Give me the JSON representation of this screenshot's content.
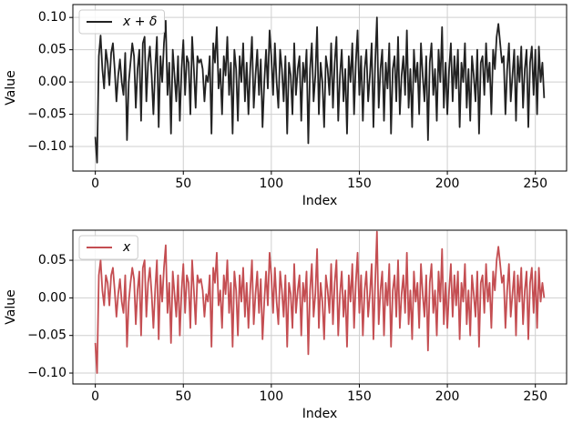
{
  "chart_data": [
    {
      "type": "line",
      "xlabel": "Index",
      "ylabel": "Value",
      "grid": true,
      "legend": "upper left",
      "xlim": [
        -12.75,
        267.75
      ],
      "xticks": [
        0,
        50,
        100,
        150,
        200,
        250
      ],
      "ylim": [
        -0.138,
        0.12
      ],
      "yticks": [
        {
          "value": -0.1,
          "label": "−0.10"
        },
        {
          "value": -0.05,
          "label": "−0.05"
        },
        {
          "value": 0,
          "label": "0.00"
        },
        {
          "value": 0.05,
          "label": "0.05"
        },
        {
          "value": 0.1,
          "label": "0.10"
        }
      ],
      "x": [
        0,
        1,
        2,
        3,
        4,
        5,
        6,
        7,
        8,
        9,
        10,
        11,
        12,
        13,
        14,
        15,
        16,
        17,
        18,
        19,
        20,
        21,
        22,
        23,
        24,
        25,
        26,
        27,
        28,
        29,
        30,
        31,
        32,
        33,
        34,
        35,
        36,
        37,
        38,
        39,
        40,
        41,
        42,
        43,
        44,
        45,
        46,
        47,
        48,
        49,
        50,
        51,
        52,
        53,
        54,
        55,
        56,
        57,
        58,
        59,
        60,
        61,
        62,
        63,
        64,
        65,
        66,
        67,
        68,
        69,
        70,
        71,
        72,
        73,
        74,
        75,
        76,
        77,
        78,
        79,
        80,
        81,
        82,
        83,
        84,
        85,
        86,
        87,
        88,
        89,
        90,
        91,
        92,
        93,
        94,
        95,
        96,
        97,
        98,
        99,
        100,
        101,
        102,
        103,
        104,
        105,
        106,
        107,
        108,
        109,
        110,
        111,
        112,
        113,
        114,
        115,
        116,
        117,
        118,
        119,
        120,
        121,
        122,
        123,
        124,
        125,
        126,
        127,
        128,
        129,
        130,
        131,
        132,
        133,
        134,
        135,
        136,
        137,
        138,
        139,
        140,
        141,
        142,
        143,
        144,
        145,
        146,
        147,
        148,
        149,
        150,
        151,
        152,
        153,
        154,
        155,
        156,
        157,
        158,
        159,
        160,
        161,
        162,
        163,
        164,
        165,
        166,
        167,
        168,
        169,
        170,
        171,
        172,
        173,
        174,
        175,
        176,
        177,
        178,
        179,
        180,
        181,
        182,
        183,
        184,
        185,
        186,
        187,
        188,
        189,
        190,
        191,
        192,
        193,
        194,
        195,
        196,
        197,
        198,
        199,
        200,
        201,
        202,
        203,
        204,
        205,
        206,
        207,
        208,
        209,
        210,
        211,
        212,
        213,
        214,
        215,
        216,
        217,
        218,
        219,
        220,
        221,
        222,
        223,
        224,
        225,
        226,
        227,
        228,
        229,
        230,
        231,
        232,
        233,
        234,
        235,
        236,
        237,
        238,
        239,
        240,
        241,
        242,
        243,
        244,
        245,
        246,
        247,
        248,
        249,
        250,
        251,
        252,
        253,
        254,
        255
      ],
      "series": [
        {
          "name": "x + δ",
          "color": "#222222",
          "values": [
            -0.085,
            -0.125,
            0.04,
            0.072,
            0.02,
            -0.01,
            0.05,
            0.03,
            -0.005,
            0.045,
            0.06,
            0.02,
            -0.03,
            0.01,
            0.035,
            0.0,
            -0.02,
            0.045,
            -0.09,
            0.0,
            0.03,
            0.06,
            0.04,
            -0.04,
            0.02,
            0.05,
            -0.06,
            0.06,
            0.07,
            -0.03,
            0.03,
            0.055,
            0.01,
            -0.05,
            0.02,
            0.07,
            -0.07,
            0.04,
            0.0,
            0.06,
            0.095,
            -0.02,
            0.03,
            -0.08,
            0.05,
            0.01,
            -0.03,
            0.04,
            -0.06,
            0.02,
            0.065,
            -0.02,
            0.04,
            0.03,
            -0.05,
            0.07,
            0.02,
            -0.04,
            0.04,
            0.03,
            0.035,
            0.02,
            -0.03,
            0.01,
            0.0,
            0.04,
            -0.08,
            0.06,
            0.03,
            0.085,
            -0.01,
            0.02,
            -0.05,
            0.04,
            0.01,
            0.07,
            -0.02,
            0.03,
            -0.08,
            0.05,
            0.02,
            -0.06,
            0.04,
            0.0,
            0.06,
            -0.03,
            0.03,
            -0.05,
            0.02,
            0.07,
            -0.04,
            0.01,
            0.05,
            -0.02,
            0.035,
            -0.07,
            0.0,
            0.05,
            -0.01,
            0.08,
            0.04,
            -0.02,
            0.06,
            0.0,
            -0.04,
            0.05,
            0.02,
            -0.03,
            0.04,
            -0.08,
            0.03,
            0.01,
            -0.05,
            0.06,
            -0.02,
            0.02,
            0.04,
            -0.06,
            0.03,
            0.0,
            0.05,
            -0.095,
            0.02,
            0.06,
            -0.03,
            0.01,
            0.085,
            -0.05,
            0.03,
            0.0,
            -0.07,
            0.04,
            0.02,
            -0.02,
            0.06,
            -0.04,
            0.03,
            0.07,
            -0.06,
            0.01,
            0.05,
            -0.03,
            0.02,
            -0.08,
            0.04,
            0.0,
            0.06,
            -0.05,
            0.03,
            0.08,
            -0.02,
            0.04,
            -0.06,
            0.02,
            0.05,
            -0.03,
            0.01,
            0.06,
            -0.07,
            0.03,
            0.1,
            -0.04,
            0.02,
            0.05,
            -0.06,
            0.03,
            -0.01,
            0.06,
            -0.08,
            0.02,
            0.04,
            -0.03,
            0.07,
            -0.05,
            0.01,
            0.04,
            -0.02,
            0.08,
            -0.04,
            0.02,
            -0.07,
            0.05,
            0.0,
            0.03,
            -0.05,
            0.06,
            0.01,
            -0.03,
            0.04,
            -0.09,
            0.03,
            0.06,
            -0.02,
            0.02,
            -0.06,
            0.05,
            0.0,
            0.085,
            -0.04,
            0.03,
            -0.05,
            0.02,
            0.06,
            -0.03,
            0.04,
            -0.01,
            0.05,
            -0.07,
            0.03,
            0.0,
            0.06,
            -0.04,
            0.02,
            -0.06,
            0.04,
            0.01,
            -0.03,
            0.05,
            -0.08,
            0.03,
            0.04,
            -0.02,
            0.06,
            0.0,
            0.03,
            -0.05,
            0.05,
            0.02,
            0.07,
            0.09,
            0.06,
            0.03,
            0.04,
            -0.05,
            0.02,
            0.06,
            -0.03,
            0.01,
            0.05,
            -0.06,
            0.04,
            0.0,
            0.055,
            -0.04,
            0.02,
            0.05,
            -0.07,
            0.03,
            0.055,
            -0.02,
            0.05,
            -0.05,
            0.055,
            0.0,
            0.03,
            -0.025
          ]
        }
      ]
    },
    {
      "type": "line",
      "xlabel": "Index",
      "ylabel": "Value",
      "grid": true,
      "legend": "upper left",
      "xlim": [
        -12.75,
        267.75
      ],
      "xticks": [
        0,
        50,
        100,
        150,
        200,
        250
      ],
      "ylim": [
        -0.1145,
        0.09
      ],
      "yticks": [
        {
          "value": -0.1,
          "label": "−0.10"
        },
        {
          "value": -0.05,
          "label": "−0.05"
        },
        {
          "value": 0,
          "label": "0.00"
        },
        {
          "value": 0.05,
          "label": "0.05"
        }
      ],
      "x": [
        0,
        1,
        2,
        3,
        4,
        5,
        6,
        7,
        8,
        9,
        10,
        11,
        12,
        13,
        14,
        15,
        16,
        17,
        18,
        19,
        20,
        21,
        22,
        23,
        24,
        25,
        26,
        27,
        28,
        29,
        30,
        31,
        32,
        33,
        34,
        35,
        36,
        37,
        38,
        39,
        40,
        41,
        42,
        43,
        44,
        45,
        46,
        47,
        48,
        49,
        50,
        51,
        52,
        53,
        54,
        55,
        56,
        57,
        58,
        59,
        60,
        61,
        62,
        63,
        64,
        65,
        66,
        67,
        68,
        69,
        70,
        71,
        72,
        73,
        74,
        75,
        76,
        77,
        78,
        79,
        80,
        81,
        82,
        83,
        84,
        85,
        86,
        87,
        88,
        89,
        90,
        91,
        92,
        93,
        94,
        95,
        96,
        97,
        98,
        99,
        100,
        101,
        102,
        103,
        104,
        105,
        106,
        107,
        108,
        109,
        110,
        111,
        112,
        113,
        114,
        115,
        116,
        117,
        118,
        119,
        120,
        121,
        122,
        123,
        124,
        125,
        126,
        127,
        128,
        129,
        130,
        131,
        132,
        133,
        134,
        135,
        136,
        137,
        138,
        139,
        140,
        141,
        142,
        143,
        144,
        145,
        146,
        147,
        148,
        149,
        150,
        151,
        152,
        153,
        154,
        155,
        156,
        157,
        158,
        159,
        160,
        161,
        162,
        163,
        164,
        165,
        166,
        167,
        168,
        169,
        170,
        171,
        172,
        173,
        174,
        175,
        176,
        177,
        178,
        179,
        180,
        181,
        182,
        183,
        184,
        185,
        186,
        187,
        188,
        189,
        190,
        191,
        192,
        193,
        194,
        195,
        196,
        197,
        198,
        199,
        200,
        201,
        202,
        203,
        204,
        205,
        206,
        207,
        208,
        209,
        210,
        211,
        212,
        213,
        214,
        215,
        216,
        217,
        218,
        219,
        220,
        221,
        222,
        223,
        224,
        225,
        226,
        227,
        228,
        229,
        230,
        231,
        232,
        233,
        234,
        235,
        236,
        237,
        238,
        239,
        240,
        241,
        242,
        243,
        244,
        245,
        246,
        247,
        248,
        249,
        250,
        251,
        252,
        253,
        254,
        255
      ],
      "series": [
        {
          "name": "x",
          "color": "#c44e52",
          "values": [
            -0.06,
            -0.1,
            0.03,
            0.05,
            0.01,
            -0.01,
            0.03,
            0.02,
            -0.01,
            0.03,
            0.04,
            0.01,
            -0.025,
            0.005,
            0.025,
            -0.005,
            -0.02,
            0.03,
            -0.065,
            -0.005,
            0.02,
            0.04,
            0.025,
            -0.035,
            0.01,
            0.035,
            -0.05,
            0.04,
            0.05,
            -0.025,
            0.02,
            0.04,
            0.005,
            -0.04,
            0.01,
            0.05,
            -0.055,
            0.03,
            -0.005,
            0.04,
            0.07,
            -0.02,
            0.02,
            -0.06,
            0.035,
            0.005,
            -0.025,
            0.03,
            -0.05,
            0.01,
            0.045,
            -0.02,
            0.03,
            0.02,
            -0.04,
            0.05,
            0.01,
            -0.035,
            0.03,
            0.02,
            0.025,
            0.01,
            -0.025,
            0.005,
            -0.005,
            0.03,
            -0.065,
            0.04,
            0.02,
            0.06,
            -0.01,
            0.01,
            -0.04,
            0.03,
            0.005,
            0.05,
            -0.02,
            0.02,
            -0.065,
            0.035,
            0.01,
            -0.05,
            0.03,
            -0.005,
            0.04,
            -0.025,
            0.02,
            -0.04,
            0.01,
            0.05,
            -0.035,
            0.005,
            0.035,
            -0.02,
            0.025,
            -0.055,
            -0.005,
            0.035,
            -0.01,
            0.06,
            0.03,
            -0.02,
            0.04,
            -0.005,
            -0.035,
            0.035,
            0.01,
            -0.025,
            0.03,
            -0.065,
            0.02,
            0.005,
            -0.04,
            0.045,
            -0.02,
            0.01,
            0.03,
            -0.05,
            0.02,
            -0.005,
            0.035,
            -0.075,
            0.01,
            0.045,
            -0.025,
            0.005,
            0.065,
            -0.04,
            0.02,
            -0.005,
            -0.055,
            0.03,
            0.01,
            -0.02,
            0.045,
            -0.035,
            0.02,
            0.05,
            -0.05,
            0.005,
            0.035,
            -0.025,
            0.01,
            -0.065,
            0.03,
            -0.005,
            0.045,
            -0.04,
            0.02,
            0.06,
            -0.02,
            0.03,
            -0.05,
            0.01,
            0.035,
            -0.025,
            0.005,
            0.045,
            -0.055,
            0.02,
            0.088,
            -0.035,
            0.01,
            0.035,
            -0.05,
            0.02,
            -0.01,
            0.045,
            -0.065,
            0.01,
            0.03,
            -0.025,
            0.05,
            -0.04,
            0.005,
            0.03,
            -0.02,
            0.06,
            -0.035,
            0.01,
            -0.055,
            0.035,
            -0.005,
            0.02,
            -0.04,
            0.045,
            0.005,
            -0.025,
            0.03,
            -0.07,
            0.02,
            0.045,
            -0.02,
            0.01,
            -0.05,
            0.035,
            -0.005,
            0.065,
            -0.035,
            0.02,
            -0.04,
            0.01,
            0.045,
            -0.025,
            0.03,
            -0.01,
            0.035,
            -0.055,
            0.02,
            -0.005,
            0.045,
            -0.035,
            0.01,
            -0.05,
            0.03,
            0.005,
            -0.025,
            0.035,
            -0.065,
            0.02,
            0.03,
            -0.02,
            0.045,
            -0.005,
            0.02,
            -0.04,
            0.035,
            0.01,
            0.05,
            0.068,
            0.045,
            0.02,
            0.03,
            -0.04,
            0.01,
            0.045,
            -0.025,
            0.005,
            0.035,
            -0.05,
            0.03,
            -0.005,
            0.04,
            -0.035,
            0.01,
            0.035,
            -0.055,
            0.02,
            0.04,
            -0.02,
            0.035,
            -0.04,
            0.04,
            -0.005,
            0.02,
            0.0
          ]
        }
      ]
    }
  ]
}
